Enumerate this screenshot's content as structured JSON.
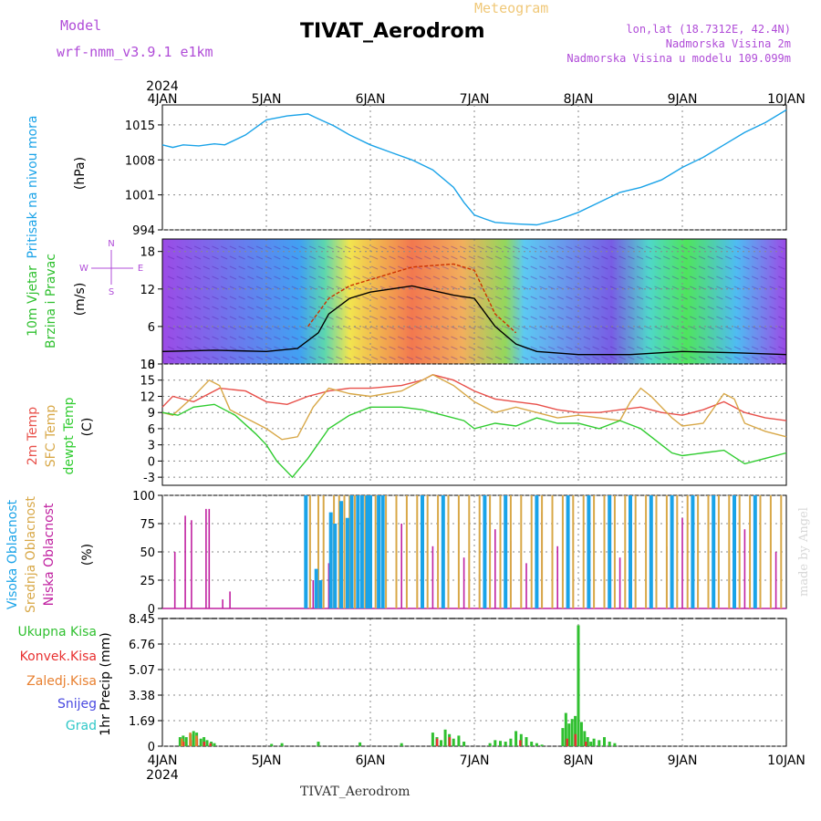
{
  "header": {
    "title": "TIVAT_Aerodrom",
    "subtitle": "Meteogram",
    "model_label": "Model",
    "model_name": "wrf-nmm_v3.9.1 e1km",
    "lonlat": "lon,lat (18.7312E, 42.4N)",
    "elevation": "Nadmorska Visina 2m",
    "model_elevation": "Nadmorska Visina u modelu 109.099m",
    "year_top": "2024",
    "footer": "TIVAT_Aerodrom",
    "credit": "made by Angel"
  },
  "colors": {
    "pressure": "#1aa3e8",
    "temp2m": "#e8504a",
    "sfc_temp": "#d8a848",
    "dewpt": "#30cc30",
    "high_cloud": "#1aa3e8",
    "mid_cloud": "#d8a848",
    "low_cloud": "#c020a0",
    "total_precip": "#30c030",
    "conv_precip": "#e83030",
    "frozen_precip": "#e88030",
    "snow": "#4848e0",
    "graupel": "#30c8c8",
    "wind_label": "#30c030",
    "wind_dir_label": "#b04cd8"
  },
  "chart_data": [
    {
      "type": "line",
      "name": "pressure-panel",
      "ylabel": "Pritisak na nivou mora",
      "unit": "(hPa)",
      "ylim": [
        994,
        1019
      ],
      "yticks": [
        994,
        1001,
        1008,
        1015
      ],
      "x_ticks": [
        "4JAN",
        "5JAN",
        "6JAN",
        "7JAN",
        "8JAN",
        "9JAN",
        "10JAN"
      ],
      "x_year": "2024",
      "grid": true,
      "series": [
        {
          "key": "pressure",
          "x": [
            0,
            0.1,
            0.2,
            0.35,
            0.5,
            0.6,
            0.8,
            1,
            1.2,
            1.4,
            1.5,
            1.65,
            1.8,
            2,
            2.2,
            2.4,
            2.6,
            2.8,
            2.9,
            3,
            3.1,
            3.2,
            3.4,
            3.6,
            3.8,
            4,
            4.2,
            4.4,
            4.6,
            4.8,
            5,
            5.2,
            5.4,
            5.6,
            5.8,
            6
          ],
          "y": [
            1011,
            1010.5,
            1011,
            1010.8,
            1011.2,
            1011,
            1013,
            1016,
            1016.8,
            1017.2,
            1016.2,
            1014.8,
            1013,
            1011,
            1009.5,
            1008,
            1006,
            1002.5,
            999.5,
            997,
            996.2,
            995.5,
            995.2,
            995,
            996,
            997.5,
            999.5,
            1001.5,
            1002.5,
            1004,
            1006.5,
            1008.5,
            1011,
            1013.5,
            1015.5,
            1018
          ]
        }
      ]
    },
    {
      "type": "wind",
      "name": "wind-panel",
      "ylabel": "10m Vjetar Brzina i Pravac",
      "unit": "(m/s)",
      "compass": {
        "north": "N",
        "west": "W",
        "east": "E",
        "south": "S"
      },
      "ylim": [
        0,
        20
      ],
      "yticks": [
        0,
        6,
        12,
        18
      ],
      "grid": true,
      "series": [
        {
          "key": "speed",
          "x": [
            0,
            0.5,
            1,
            1.3,
            1.5,
            1.6,
            1.8,
            2,
            2.4,
            2.8,
            3,
            3.2,
            3.4,
            3.6,
            4,
            4.5,
            5,
            5.5,
            6
          ],
          "y": [
            2,
            2.2,
            2,
            2.5,
            5,
            8,
            10.5,
            11.5,
            12.5,
            11,
            10.5,
            6,
            3.2,
            2,
            1.5,
            1.5,
            2,
            1.8,
            1.5
          ]
        },
        {
          "key": "gust",
          "x": [
            1.4,
            1.6,
            1.8,
            2,
            2.4,
            2.8,
            3,
            3.2,
            3.4
          ],
          "y": [
            6,
            10.5,
            12.5,
            13.5,
            15.5,
            16,
            15,
            8,
            5
          ]
        }
      ]
    },
    {
      "type": "line",
      "name": "temperature-panel",
      "ylabel": [
        "2m Temp",
        "SFC Temp",
        "dewpt Temp"
      ],
      "unit": "(C)",
      "ylim": [
        -4.5,
        18
      ],
      "yticks": [
        -3,
        0,
        3,
        6,
        9,
        12,
        15,
        18
      ],
      "grid": true,
      "series": [
        {
          "key": "temp2m",
          "name": "2m Temp",
          "x": [
            0,
            0.1,
            0.3,
            0.55,
            0.8,
            1,
            1.2,
            1.4,
            1.6,
            1.8,
            2,
            2.3,
            2.5,
            2.6,
            2.8,
            3,
            3.2,
            3.4,
            3.6,
            3.8,
            4,
            4.2,
            4.4,
            4.6,
            4.8,
            5,
            5.2,
            5.4,
            5.6,
            5.8,
            6
          ],
          "y": [
            10,
            12,
            11,
            13.5,
            13,
            11,
            10.5,
            12,
            13,
            13.5,
            13.5,
            14,
            15,
            16,
            15,
            13,
            11.5,
            11,
            10.5,
            9.5,
            9,
            9,
            9.5,
            10,
            9,
            8.5,
            9.5,
            11,
            9,
            8,
            7.5
          ]
        },
        {
          "key": "sfc_temp",
          "name": "SFC Temp",
          "x": [
            0,
            0.1,
            0.3,
            0.45,
            0.55,
            0.65,
            0.8,
            1,
            1.15,
            1.3,
            1.45,
            1.6,
            1.8,
            2,
            2.3,
            2.5,
            2.6,
            2.8,
            3,
            3.2,
            3.4,
            3.6,
            3.8,
            4,
            4.2,
            4.4,
            4.5,
            4.6,
            4.7,
            4.9,
            5,
            5.2,
            5.4,
            5.5,
            5.6,
            5.8,
            6
          ],
          "y": [
            9,
            8.5,
            12,
            15,
            14,
            9.5,
            8,
            6,
            4,
            4.5,
            10,
            13.5,
            12.5,
            12,
            13,
            15,
            16,
            14,
            11,
            9,
            10,
            9,
            8,
            8.5,
            8,
            7.5,
            11,
            13.5,
            12,
            8,
            6.5,
            7,
            12.5,
            11.5,
            7,
            5.5,
            4.5
          ]
        },
        {
          "key": "dewpt",
          "name": "dewpt Temp",
          "x": [
            0,
            0.15,
            0.3,
            0.5,
            0.7,
            0.9,
            1,
            1.1,
            1.25,
            1.4,
            1.6,
            1.8,
            2,
            2.3,
            2.5,
            2.7,
            2.9,
            3,
            3.2,
            3.4,
            3.6,
            3.8,
            4,
            4.2,
            4.4,
            4.6,
            4.8,
            4.9,
            5,
            5.2,
            5.4,
            5.6,
            5.8,
            6
          ],
          "y": [
            9,
            8.5,
            10,
            10.5,
            8.5,
            5,
            3,
            0,
            -3,
            0.5,
            6,
            8.5,
            10,
            10,
            9.5,
            8.5,
            7.5,
            6,
            7,
            6.5,
            8,
            7,
            7,
            6,
            7.5,
            6,
            3,
            1.5,
            1,
            1.5,
            2,
            -0.5,
            0.5,
            1.5
          ]
        }
      ]
    },
    {
      "type": "bar",
      "name": "cloud-panel",
      "ylabel": [
        "Visoka Oblacnost",
        "Srednja Oblacnost",
        "Niska Oblacnost"
      ],
      "unit": "(%)",
      "ylim": [
        0,
        100
      ],
      "yticks": [
        0,
        25,
        50,
        75,
        100
      ],
      "grid": true,
      "series": [
        {
          "key": "low_cloud",
          "name": "Niska Oblacnost",
          "x": [
            0.12,
            0.22,
            0.28,
            0.42,
            0.45,
            0.58,
            0.65,
            1.45,
            1.6,
            2.0,
            2.3,
            2.45,
            2.6,
            2.75,
            2.9,
            3.05,
            3.2,
            3.35,
            3.5,
            3.65,
            3.8,
            3.95,
            4.1,
            4.25,
            4.4,
            4.55,
            4.7,
            4.85,
            5.0,
            5.15,
            5.3,
            5.45,
            5.6,
            5.75,
            5.9
          ],
          "y": [
            50,
            82,
            78,
            88,
            88,
            8,
            15,
            25,
            40,
            60,
            75,
            30,
            55,
            80,
            45,
            30,
            70,
            60,
            40,
            85,
            55,
            35,
            90,
            60,
            45,
            70,
            35,
            55,
            80,
            25,
            60,
            45,
            70,
            30,
            50
          ]
        },
        {
          "key": "mid_cloud",
          "name": "Srednja Oblacnost",
          "x": [
            1.42,
            1.5,
            1.55,
            1.65,
            1.7,
            1.75,
            1.8,
            1.85,
            1.95,
            2.05,
            2.15,
            2.25,
            2.35,
            2.45,
            2.55,
            2.65,
            2.75,
            2.85,
            2.95,
            3.05,
            3.15,
            3.25,
            3.35,
            3.45,
            3.55,
            3.65,
            3.75,
            3.85,
            3.95,
            4.05,
            4.15,
            4.25,
            4.35,
            4.45,
            4.55,
            4.65,
            4.75,
            4.85,
            4.95,
            5.05,
            5.15,
            5.25,
            5.35,
            5.45,
            5.55,
            5.65,
            5.75,
            5.85,
            5.95
          ],
          "y": [
            100,
            100,
            100,
            100,
            100,
            100,
            100,
            100,
            100,
            100,
            100,
            100,
            100,
            100,
            100,
            100,
            100,
            100,
            100,
            100,
            100,
            100,
            100,
            100,
            100,
            100,
            100,
            100,
            100,
            100,
            100,
            100,
            100,
            100,
            100,
            100,
            100,
            100,
            100,
            100,
            100,
            100,
            100,
            100,
            100,
            100,
            100,
            100,
            100
          ]
        },
        {
          "key": "high_cloud",
          "name": "Visoka Oblacnost",
          "x": [
            1.38,
            1.48,
            1.52,
            1.62,
            1.66,
            1.72,
            1.78,
            1.82,
            1.88,
            1.92,
            1.97,
            2.0,
            2.08,
            2.12,
            2.5,
            2.7,
            3.1,
            3.3,
            3.6,
            3.9,
            4.1,
            4.3,
            4.5,
            4.7,
            4.9,
            5.1,
            5.3,
            5.5,
            5.7
          ],
          "y": [
            100,
            35,
            25,
            85,
            75,
            95,
            80,
            100,
            100,
            100,
            100,
            100,
            100,
            100,
            100,
            100,
            100,
            100,
            100,
            100,
            100,
            100,
            100,
            100,
            100,
            100,
            100,
            100,
            100
          ]
        }
      ]
    },
    {
      "type": "bar",
      "name": "precip-panel",
      "ylabel": "1hr Precip (mm)",
      "legend": [
        "Ukupna Kisa",
        "Konvek.Kisa",
        "Zaledj.Kisa",
        "Snijeg",
        "Grad"
      ],
      "ylim": [
        0,
        8.45
      ],
      "yticks": [
        0,
        1.69,
        3.38,
        5.07,
        6.76,
        8.45
      ],
      "x_ticks": [
        "4JAN",
        "5JAN",
        "6JAN",
        "7JAN",
        "8JAN",
        "9JAN",
        "10JAN"
      ],
      "x_year": "2024",
      "grid": true,
      "series": [
        {
          "key": "total_precip",
          "name": "Ukupna Kisa",
          "x": [
            0.17,
            0.2,
            0.23,
            0.27,
            0.3,
            0.33,
            0.37,
            0.4,
            0.43,
            0.47,
            0.5,
            1.05,
            1.15,
            1.5,
            1.9,
            2.3,
            2.6,
            2.64,
            2.68,
            2.72,
            2.76,
            2.8,
            2.85,
            2.9,
            3.15,
            3.2,
            3.25,
            3.3,
            3.35,
            3.4,
            3.45,
            3.5,
            3.55,
            3.6,
            3.65,
            3.85,
            3.88,
            3.91,
            3.94,
            3.97,
            4.0,
            4.03,
            4.06,
            4.09,
            4.12,
            4.15,
            4.2,
            4.25,
            4.3,
            4.35
          ],
          "y": [
            0.6,
            0.7,
            0.6,
            0.8,
            1.0,
            0.9,
            0.5,
            0.6,
            0.4,
            0.3,
            0.2,
            0.15,
            0.2,
            0.3,
            0.25,
            0.2,
            0.9,
            0.6,
            0.4,
            1.1,
            0.8,
            0.5,
            0.7,
            0.3,
            0.2,
            0.4,
            0.35,
            0.3,
            0.5,
            1.0,
            0.8,
            0.6,
            0.3,
            0.2,
            0.1,
            1.2,
            2.2,
            1.5,
            1.8,
            2.0,
            8.0,
            1.6,
            1.0,
            0.6,
            0.3,
            0.5,
            0.4,
            0.6,
            0.3,
            0.2
          ]
        },
        {
          "key": "conv_precip",
          "name": "Konvek.Kisa",
          "x": [
            0.18,
            0.25,
            0.31,
            0.38,
            0.44,
            2.62,
            2.74,
            3.42,
            3.87,
            3.95,
            4.05
          ],
          "y": [
            0.3,
            0.4,
            0.5,
            0.3,
            0.2,
            0.5,
            0.6,
            0.4,
            0.5,
            0.8,
            0.3
          ]
        },
        {
          "key": "frozen_precip",
          "name": "Zaledj.Kisa",
          "x": [
            0.21,
            0.29,
            0.35
          ],
          "y": [
            0.5,
            0.9,
            0.7
          ]
        }
      ]
    }
  ]
}
